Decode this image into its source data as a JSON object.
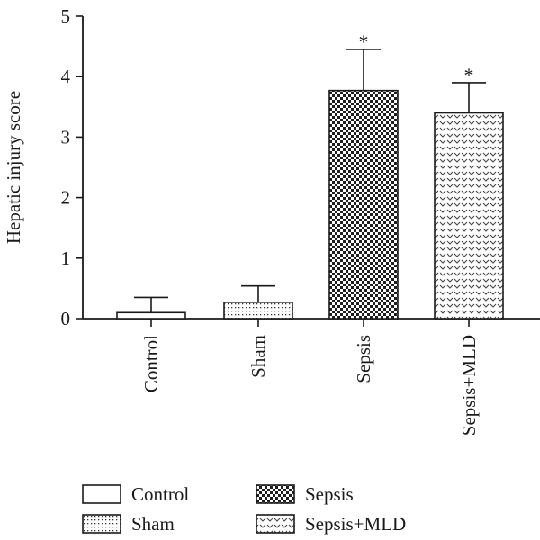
{
  "chart_data": {
    "type": "bar",
    "ylabel": "Hepatic injury score",
    "xlabel": "",
    "ylim": [
      0,
      5
    ],
    "yticks": [
      0,
      1,
      2,
      3,
      4,
      5
    ],
    "categories": [
      "Control",
      "Sham",
      "Sepsis",
      "Sepsis+MLD"
    ],
    "values": [
      0.1,
      0.27,
      3.77,
      3.4
    ],
    "errors": [
      0.25,
      0.27,
      0.68,
      0.5
    ],
    "annotations": [
      "",
      "",
      "*",
      "*"
    ],
    "fills": [
      "white",
      "dots",
      "checker",
      "chevron"
    ],
    "legend": {
      "placement": "bottom",
      "entries": [
        {
          "label": "Control",
          "fill": "white"
        },
        {
          "label": "Sham",
          "fill": "dots"
        },
        {
          "label": "Sepsis",
          "fill": "checker"
        },
        {
          "label": "Sepsis+MLD",
          "fill": "chevron"
        }
      ]
    },
    "grid": false
  }
}
